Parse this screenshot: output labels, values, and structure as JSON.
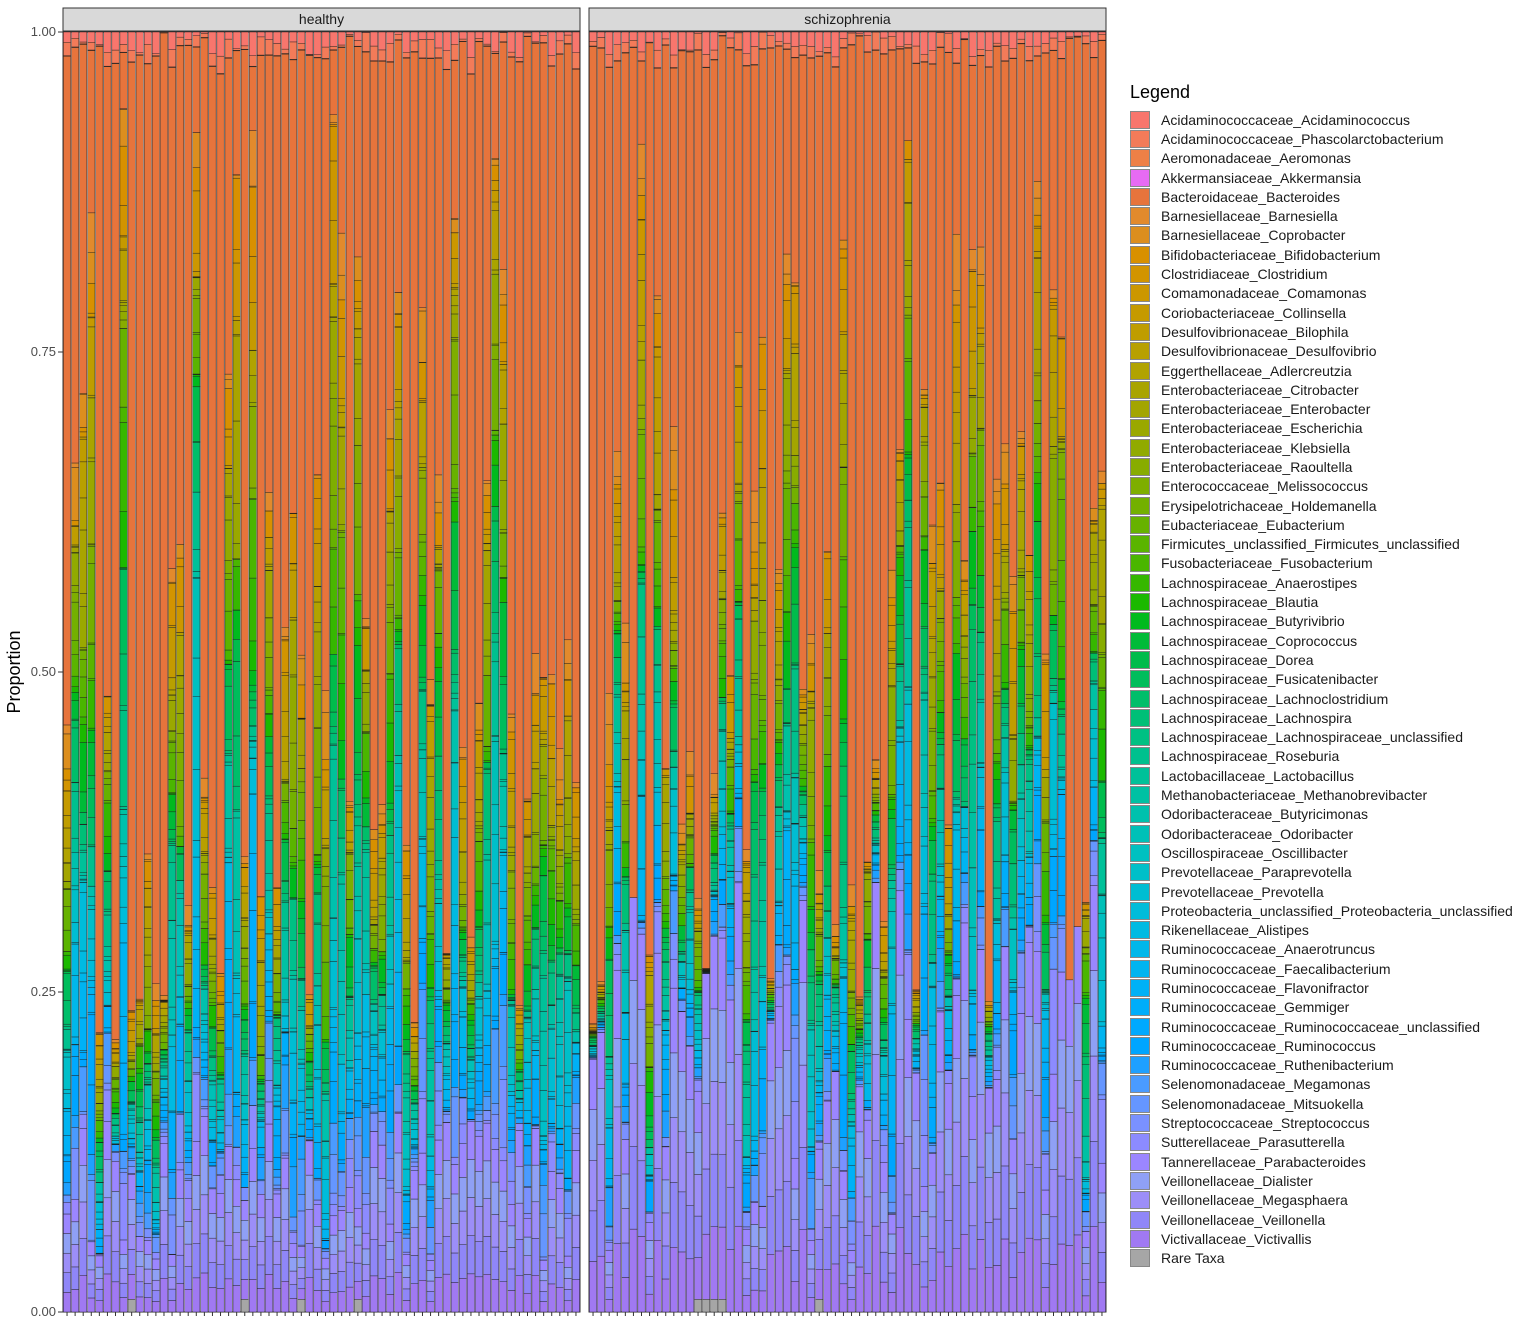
{
  "chart_data": {
    "type": "bar",
    "stacked": true,
    "ylabel": "Proportion",
    "xlabel": "",
    "ylim": [
      0,
      1
    ],
    "y_ticks": [
      "0.00",
      "0.25",
      "0.50",
      "0.75",
      "1.00"
    ],
    "facets": [
      "healthy",
      "schizophrenia"
    ],
    "bars_per_facet": [
      64,
      64
    ],
    "legend_title": "Legend",
    "legend_position": "right",
    "series": [
      {
        "name": "Acidaminococcaceae_Acidaminococcus",
        "color": "#F8766D"
      },
      {
        "name": "Acidaminococcaceae_Phascolarctobacterium",
        "color": "#F37B59"
      },
      {
        "name": "Aeromonadaceae_Aeromonas",
        "color": "#EE8046"
      },
      {
        "name": "Akkermansiaceae_Akkermansia",
        "color": "#E76BF3"
      },
      {
        "name": "Bacteroidaceae_Bacteroides",
        "color": "#E7743C"
      },
      {
        "name": "Barnesiellaceae_Barnesiella",
        "color": "#E28A2C"
      },
      {
        "name": "Barnesiellaceae_Coprobacter",
        "color": "#DC8E1E"
      },
      {
        "name": "Bifidobacteriaceae_Bifidobacterium",
        "color": "#D89000"
      },
      {
        "name": "Clostridiaceae_Clostridium",
        "color": "#D29400"
      },
      {
        "name": "Comamonadaceae_Comamonas",
        "color": "#CC9700"
      },
      {
        "name": "Coriobacteriaceae_Collinsella",
        "color": "#C59A00"
      },
      {
        "name": "Desulfovibrionaceae_Bilophila",
        "color": "#BF9D00"
      },
      {
        "name": "Desulfovibrionaceae_Desulfovibrio",
        "color": "#B8A000"
      },
      {
        "name": "Eggerthellaceae_Adlercreutzia",
        "color": "#B1A300"
      },
      {
        "name": "Enterobacteriaceae_Citrobacter",
        "color": "#A9A400"
      },
      {
        "name": "Enterobacteriaceae_Enterobacter",
        "color": "#A3A500"
      },
      {
        "name": "Enterobacteriaceae_Escherichia",
        "color": "#9AA800"
      },
      {
        "name": "Enterobacteriaceae_Klebsiella",
        "color": "#91AA00"
      },
      {
        "name": "Enterobacteriaceae_Raoultella",
        "color": "#88AC00"
      },
      {
        "name": "Enterococcaceae_Melissococcus",
        "color": "#7EAE00"
      },
      {
        "name": "Erysipelotrichaceae_Holdemanella",
        "color": "#73B000"
      },
      {
        "name": "Eubacteriaceae_Eubacterium",
        "color": "#67B200"
      },
      {
        "name": "Firmicutes_unclassified_Firmicutes_unclassified",
        "color": "#5AB400"
      },
      {
        "name": "Fusobacteriaceae_Fusobacterium",
        "color": "#4AB600"
      },
      {
        "name": "Lachnospiraceae_Anaerostipes",
        "color": "#36B700"
      },
      {
        "name": "Lachnospiraceae_Blautia",
        "color": "#1BB900"
      },
      {
        "name": "Lachnospiraceae_Butyrivibrio",
        "color": "#00BA1E"
      },
      {
        "name": "Lachnospiraceae_Coprococcus",
        "color": "#00BB38"
      },
      {
        "name": "Lachnospiraceae_Dorea",
        "color": "#00BC4C"
      },
      {
        "name": "Lachnospiraceae_Fusicatenibacter",
        "color": "#00BD5C"
      },
      {
        "name": "Lachnospiraceae_Lachnoclostridium",
        "color": "#00BE6A"
      },
      {
        "name": "Lachnospiraceae_Lachnospira",
        "color": "#00BF77"
      },
      {
        "name": "Lachnospiraceae_Lachnospiraceae_unclassified",
        "color": "#00C083"
      },
      {
        "name": "Lachnospiraceae_Roseburia",
        "color": "#00C08E"
      },
      {
        "name": "Lactobacillaceae_Lactobacillus",
        "color": "#00C199"
      },
      {
        "name": "Methanobacteriaceae_Methanobrevibacter",
        "color": "#00C1A3"
      },
      {
        "name": "Odoribacteraceae_Butyricimonas",
        "color": "#00C1AD"
      },
      {
        "name": "Odoribacteraceae_Odoribacter",
        "color": "#00C0B7"
      },
      {
        "name": "Oscillospiraceae_Oscillibacter",
        "color": "#00C0C0"
      },
      {
        "name": "Prevotellaceae_Paraprevotella",
        "color": "#00BFC9"
      },
      {
        "name": "Prevotellaceae_Prevotella",
        "color": "#00BDD2"
      },
      {
        "name": "Proteobacteria_unclassified_Proteobacteria_unclassified",
        "color": "#00BCDA"
      },
      {
        "name": "Rikenellaceae_Alistipes",
        "color": "#00BAE2"
      },
      {
        "name": "Ruminococcaceae_Anaerotruncus",
        "color": "#00B7EA"
      },
      {
        "name": "Ruminococcaceae_Faecalibacterium",
        "color": "#00B4F0"
      },
      {
        "name": "Ruminococcaceae_Flavonifractor",
        "color": "#00B1F6"
      },
      {
        "name": "Ruminococcaceae_Gemmiger",
        "color": "#00ADFA"
      },
      {
        "name": "Ruminococcaceae_Ruminococcaceae_unclassified",
        "color": "#00A9FE"
      },
      {
        "name": "Ruminococcaceae_Ruminococcus",
        "color": "#00A5FF"
      },
      {
        "name": "Ruminococcaceae_Ruthenibacterium",
        "color": "#1FA0FF"
      },
      {
        "name": "Selenomonadaceae_Megamonas",
        "color": "#4A9BFF"
      },
      {
        "name": "Selenomonadaceae_Mitsuokella",
        "color": "#6596FF"
      },
      {
        "name": "Streptococcaceae_Streptococcus",
        "color": "#7A91FF"
      },
      {
        "name": "Sutterellaceae_Parasutterella",
        "color": "#8C8BFF"
      },
      {
        "name": "Tannerellaceae_Parabacteroides",
        "color": "#9B86FF"
      },
      {
        "name": "Veillonellaceae_Dialister",
        "color": "#8FA0F5"
      },
      {
        "name": "Veillonellaceae_Megasphaera",
        "color": "#9C8EF8"
      },
      {
        "name": "Veillonellaceae_Veillonella",
        "color": "#8F86F8"
      },
      {
        "name": "Victivallaceae_Victivallis",
        "color": "#A079F2"
      },
      {
        "name": "Rare Taxa",
        "color": "#A6A6A6"
      }
    ]
  }
}
